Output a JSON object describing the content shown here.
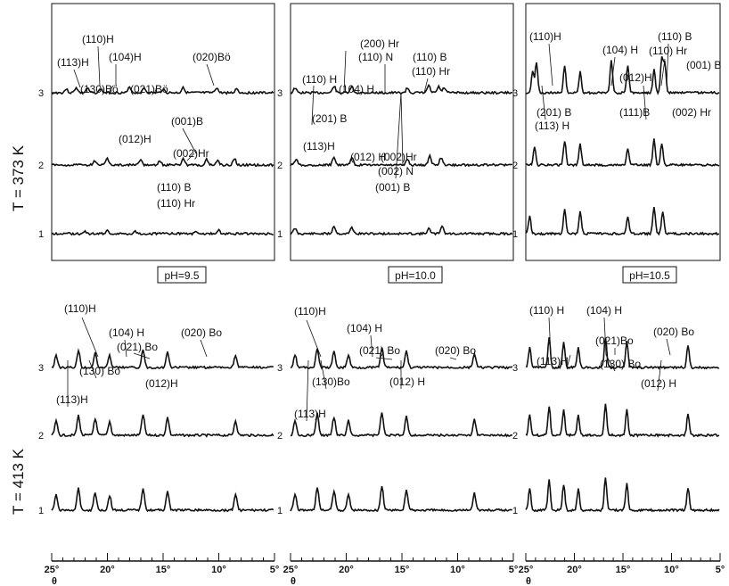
{
  "figure": {
    "row_titles": [
      "T = 373 K",
      "T = 413 K"
    ],
    "ph_labels": [
      "pH=9.5",
      "pH=10.0",
      "pH=10.5"
    ],
    "x_tick_labels": [
      "25°",
      "20°",
      "15°",
      "10°",
      "5°"
    ],
    "x_axis_symbol": "θ",
    "curve_numbers": [
      "1",
      "2",
      "3"
    ]
  },
  "chart_data": [
    {
      "type": "line",
      "row": "T = 373 K",
      "panel_label": "pH=9.5",
      "x_range": [
        25,
        5
      ],
      "curves": [
        "1",
        "2",
        "3"
      ],
      "peaks": {
        "3": [
          23.7,
          22.8,
          21.8,
          20.6,
          18.0,
          16.7,
          15.0,
          13.2,
          10.2,
          8.4
        ],
        "2": [
          21.1,
          20.0,
          17.0,
          15.3,
          13.2,
          11.1,
          10.1,
          8.6
        ],
        "1": [
          22.0,
          20.0,
          17.5,
          12.0,
          10.0
        ]
      },
      "annotations": [
        "(110)H",
        "(113)H",
        "(104)H",
        "(020)Bö",
        "(130)Bö",
        "(021)Bö",
        "(001)B",
        "(012)H",
        "(002)Hr",
        "(110) B",
        "(110) Hr"
      ]
    },
    {
      "type": "line",
      "row": "T = 373 K",
      "panel_label": "pH=10.0",
      "x_range": [
        25,
        5
      ],
      "curves": [
        "1",
        "2",
        "3"
      ],
      "peaks": {
        "3": [
          24.6,
          21.1,
          19.5,
          14.5,
          12.6,
          11.7,
          11.2
        ],
        "2": [
          24.5,
          21.1,
          19.5,
          14.5,
          12.5,
          11.5
        ],
        "1": [
          24.6,
          21.1,
          19.5,
          12.6,
          11.4
        ]
      },
      "annotations": [
        "(200) Hr",
        "(110) N",
        "(110) B",
        "(110) Hr",
        "(110) H",
        "(104) H",
        "(201) B",
        "(113)H",
        "(012) H",
        "(002)Hr",
        "(002) N",
        "(001) B"
      ]
    },
    {
      "type": "line",
      "row": "T = 373 K",
      "panel_label": "pH=10.5",
      "x_range": [
        25,
        5
      ],
      "curves": [
        "1",
        "2",
        "3"
      ],
      "peaks": {
        "3": [
          24.3,
          23.9,
          21.0,
          19.4,
          16.2,
          14.5,
          11.8,
          11.0,
          10.7
        ],
        "2": [
          24.1,
          21.0,
          19.4,
          14.5,
          11.8,
          11.0
        ],
        "1": [
          24.6,
          21.0,
          19.4,
          14.5,
          11.8,
          10.9
        ]
      },
      "annotations": [
        "(110)H",
        "(104) H",
        "(110) B",
        "(110) Hr",
        "(001) B",
        "(012)H",
        "(201) B",
        "(113) H",
        "(111)B",
        "(002) Hr"
      ]
    },
    {
      "type": "line",
      "row": "T = 413 K",
      "panel_label": "pH=9.5",
      "x_range": [
        25,
        5
      ],
      "curves": [
        "1",
        "2",
        "3"
      ],
      "peaks": {
        "3": [
          24.6,
          22.6,
          21.1,
          19.8,
          16.8,
          14.6,
          8.5
        ],
        "2": [
          24.6,
          22.6,
          21.1,
          19.8,
          16.8,
          14.6,
          8.5
        ],
        "1": [
          24.6,
          22.6,
          21.1,
          19.8,
          16.8,
          14.6,
          8.5
        ]
      },
      "annotations": [
        "(110)H",
        "(104) H",
        "(021) Bo",
        "(020) Bo",
        "(130) Bo",
        "(012)H",
        "(113)H"
      ]
    },
    {
      "type": "line",
      "row": "T = 413 K",
      "panel_label": "pH=10.0",
      "x_range": [
        25,
        5
      ],
      "curves": [
        "1",
        "2",
        "3"
      ],
      "peaks": {
        "3": [
          24.6,
          22.6,
          21.1,
          19.8,
          16.8,
          14.6,
          8.5
        ],
        "2": [
          24.6,
          22.6,
          21.1,
          19.8,
          16.8,
          14.6,
          8.5
        ],
        "1": [
          24.6,
          22.6,
          21.1,
          19.8,
          16.8,
          14.6,
          8.5
        ]
      },
      "annotations": [
        "(110)H",
        "(104) H",
        "(021) Bo",
        "(020) Bo",
        "(130)Bo",
        "(012) H",
        "(113)H"
      ]
    },
    {
      "type": "line",
      "row": "T = 413 K",
      "panel_label": "pH=10.5",
      "x_range": [
        25,
        5
      ],
      "curves": [
        "1",
        "2",
        "3"
      ],
      "peaks": {
        "3": [
          24.6,
          22.6,
          21.1,
          19.6,
          16.8,
          14.6,
          8.3
        ],
        "2": [
          24.6,
          22.6,
          21.1,
          19.6,
          16.8,
          14.6,
          8.3
        ],
        "1": [
          24.6,
          22.6,
          21.1,
          19.6,
          16.8,
          14.6,
          8.3
        ]
      },
      "annotations": [
        "(110) H",
        "(104) H",
        "(021)Bo",
        "(020) Bo",
        "(113)H",
        "(130) Bo",
        "(012) H"
      ]
    }
  ]
}
